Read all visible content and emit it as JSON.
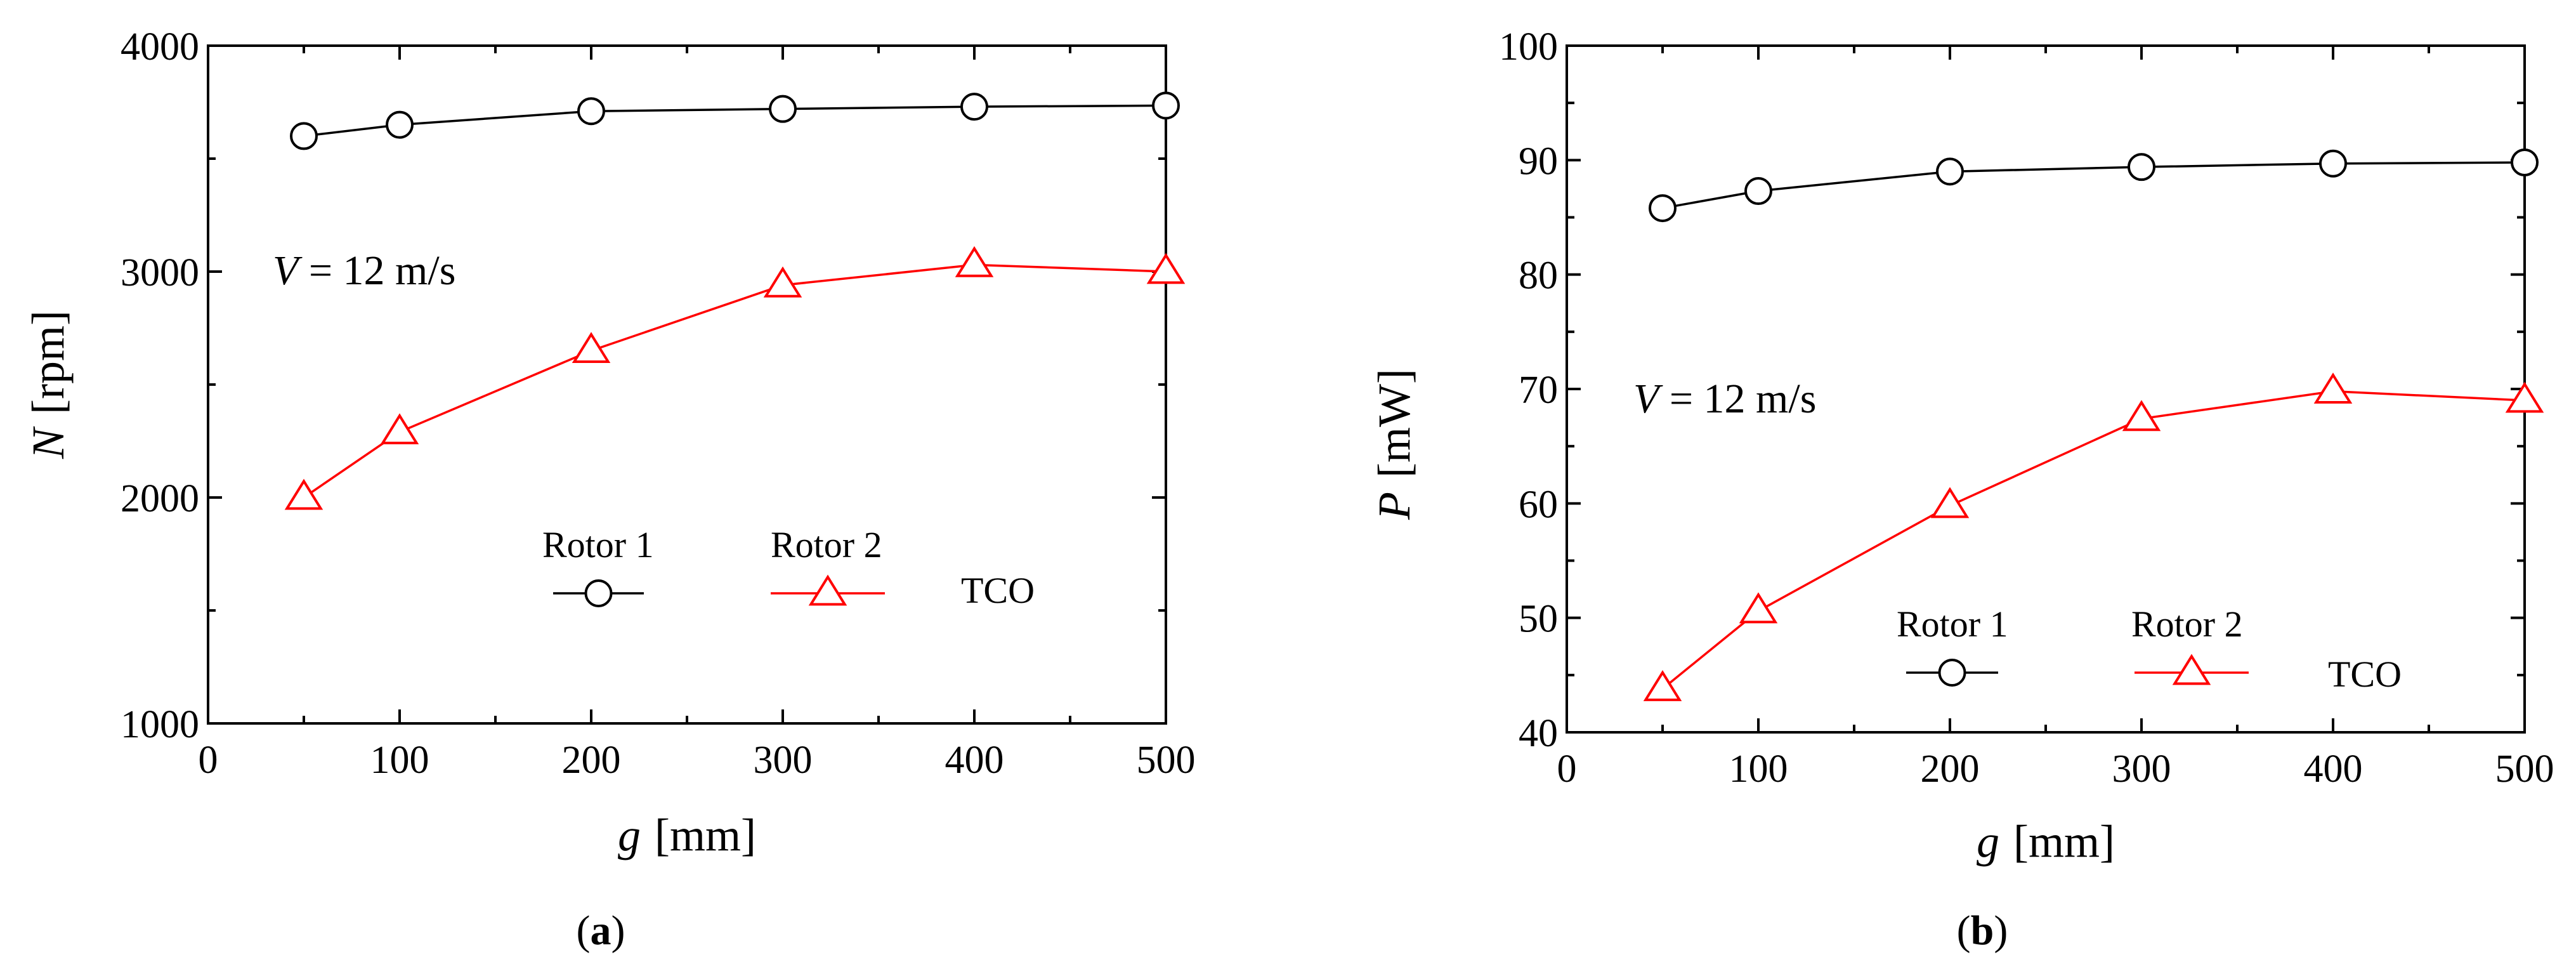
{
  "chart_data": [
    {
      "type": "line",
      "panel_label": "a",
      "x_var": "g",
      "x_unit": "[mm]",
      "y_var": "N",
      "y_unit": "[rpm]",
      "xlim": [
        0,
        500
      ],
      "ylim": [
        1000,
        4000
      ],
      "xticks": [
        0,
        100,
        200,
        300,
        400,
        500
      ],
      "yticks": [
        1000,
        2000,
        3000,
        4000
      ],
      "annotation": {
        "var": "V",
        "text": " = 12 m/s"
      },
      "legend_title": "TCO",
      "series": [
        {
          "name": "Rotor 1",
          "color": "#000000",
          "marker": "circle",
          "x": [
            50,
            100,
            200,
            300,
            400,
            500
          ],
          "y": [
            3600,
            3650,
            3710,
            3720,
            3730,
            3735
          ]
        },
        {
          "name": "Rotor 2",
          "color": "#ff0000",
          "marker": "triangle",
          "x": [
            50,
            100,
            200,
            300,
            400,
            500
          ],
          "y": [
            2000,
            2290,
            2650,
            2940,
            3030,
            3000
          ]
        }
      ]
    },
    {
      "type": "line",
      "panel_label": "b",
      "x_var": "g",
      "x_unit": "[mm]",
      "y_var": "P",
      "y_unit": "[mW]",
      "xlim": [
        0,
        500
      ],
      "ylim": [
        40,
        100
      ],
      "xticks": [
        0,
        100,
        200,
        300,
        400,
        500
      ],
      "yticks": [
        40,
        50,
        60,
        70,
        80,
        90,
        100
      ],
      "annotation": {
        "var": "V",
        "text": " = 12 m/s"
      },
      "legend_title": "TCO",
      "series": [
        {
          "name": "Rotor 1",
          "color": "#000000",
          "marker": "circle",
          "x": [
            50,
            100,
            200,
            300,
            400,
            500
          ],
          "y": [
            85.8,
            87.3,
            89.0,
            89.4,
            89.7,
            89.8
          ]
        },
        {
          "name": "Rotor 2",
          "color": "#ff0000",
          "marker": "triangle",
          "x": [
            50,
            100,
            200,
            300,
            400,
            500
          ],
          "y": [
            43.8,
            50.6,
            59.8,
            67.4,
            69.8,
            69.0
          ]
        }
      ]
    }
  ]
}
